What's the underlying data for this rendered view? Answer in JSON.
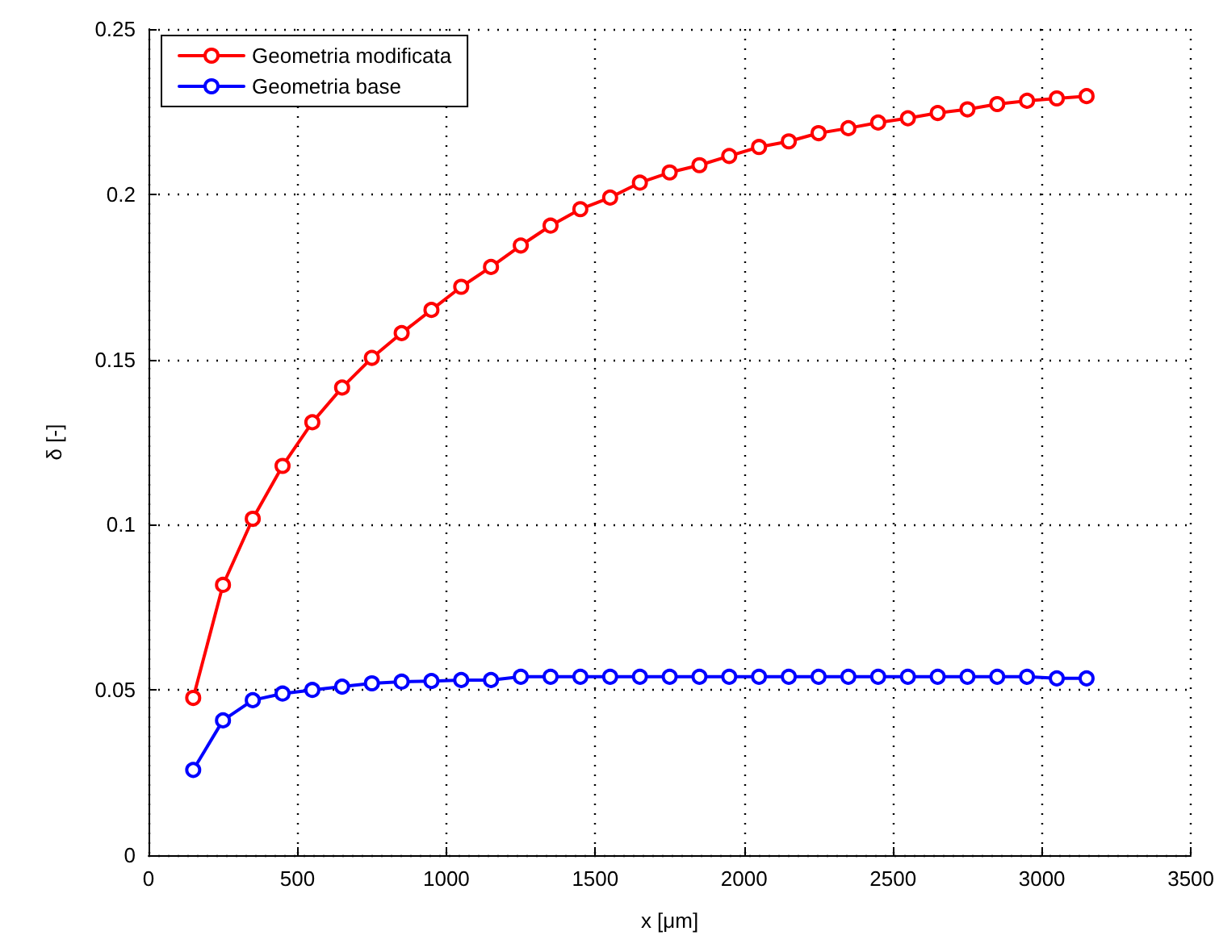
{
  "chart_data": {
    "type": "line",
    "xlabel": "x [μm]",
    "ylabel": "δ [-]",
    "x": [
      150,
      250,
      350,
      450,
      550,
      650,
      750,
      850,
      950,
      1050,
      1150,
      1250,
      1350,
      1450,
      1550,
      1650,
      1750,
      1850,
      1950,
      2050,
      2150,
      2250,
      2350,
      2450,
      2550,
      2650,
      2750,
      2850,
      2950,
      3050,
      3150
    ],
    "series": [
      {
        "name": "Geometria modificata",
        "color": "#ff0000",
        "values": [
          0.0476,
          0.0818,
          0.1018,
          0.1178,
          0.131,
          0.1415,
          0.1505,
          0.158,
          0.165,
          0.172,
          0.178,
          0.1845,
          0.1905,
          0.1955,
          0.199,
          0.2035,
          0.2066,
          0.2088,
          0.2116,
          0.2143,
          0.216,
          0.2185,
          0.22,
          0.2217,
          0.223,
          0.2246,
          0.2257,
          0.2273,
          0.2283,
          0.229,
          0.2297
        ]
      },
      {
        "name": "Geometria base",
        "color": "#0000ff",
        "values": [
          0.0258,
          0.0408,
          0.0469,
          0.0489,
          0.05,
          0.051,
          0.052,
          0.0525,
          0.0527,
          0.053,
          0.053,
          0.054,
          0.054,
          0.054,
          0.054,
          0.054,
          0.054,
          0.054,
          0.054,
          0.054,
          0.054,
          0.054,
          0.054,
          0.054,
          0.054,
          0.054,
          0.054,
          0.054,
          0.054,
          0.0535,
          0.0535
        ]
      }
    ],
    "xlim": [
      0,
      3500
    ],
    "xticks": [
      0,
      500,
      1000,
      1500,
      2000,
      2500,
      3000,
      3500
    ],
    "ylim": [
      0,
      0.25
    ],
    "yticks": [
      0,
      0.05,
      0.1,
      0.15,
      0.2,
      0.25
    ],
    "grid": true,
    "legend": "top left",
    "marker": "circle",
    "line_style": "solid"
  }
}
